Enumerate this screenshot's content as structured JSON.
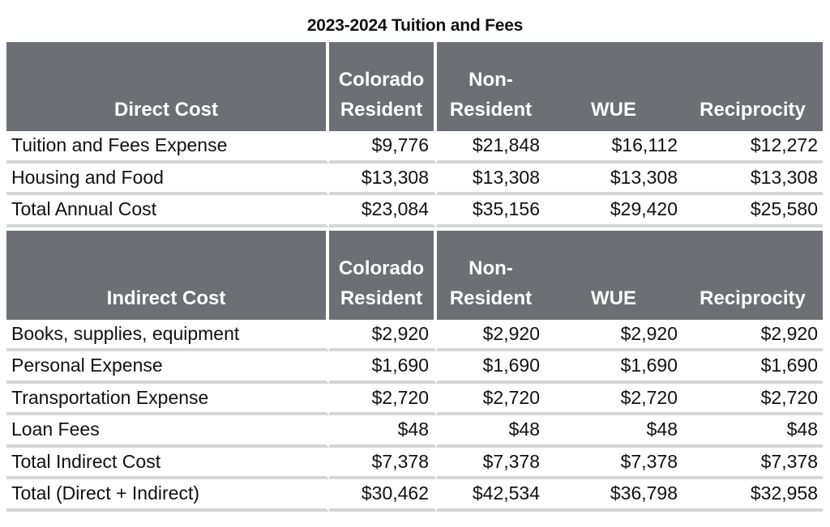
{
  "title": "2023-2024 Tuition and Fees",
  "columns": {
    "colorado_line1": "Colorado",
    "colorado_line2": "Resident",
    "nonres_line1": "Non-",
    "nonres_line2": "Resident",
    "wue": "WUE",
    "reciprocity": "Reciprocity"
  },
  "direct": {
    "header": "Direct Cost",
    "rows": [
      {
        "label": "Tuition and Fees Expense",
        "colorado": "$9,776",
        "nonresident": "$21,848",
        "wue": "$16,112",
        "reciprocity": "$12,272"
      },
      {
        "label": "Housing and Food",
        "colorado": "$13,308",
        "nonresident": "$13,308",
        "wue": "$13,308",
        "reciprocity": "$13,308"
      },
      {
        "label": "Total Annual Cost",
        "colorado": "$23,084",
        "nonresident": "$35,156",
        "wue": "$29,420",
        "reciprocity": "$25,580"
      }
    ]
  },
  "indirect": {
    "header": "Indirect Cost",
    "rows": [
      {
        "label": "Books, supplies, equipment",
        "colorado": "$2,920",
        "nonresident": "$2,920",
        "wue": "$2,920",
        "reciprocity": "$2,920"
      },
      {
        "label": "Personal Expense",
        "colorado": "$1,690",
        "nonresident": "$1,690",
        "wue": "$1,690",
        "reciprocity": "$1,690"
      },
      {
        "label": "Transportation Expense",
        "colorado": "$2,720",
        "nonresident": "$2,720",
        "wue": "$2,720",
        "reciprocity": "$2,720"
      },
      {
        "label": "Loan Fees",
        "colorado": "$48",
        "nonresident": "$48",
        "wue": "$48",
        "reciprocity": "$48"
      },
      {
        "label": "Total Indirect Cost",
        "colorado": "$7,378",
        "nonresident": "$7,378",
        "wue": "$7,378",
        "reciprocity": "$7,378"
      },
      {
        "label": "Total (Direct + Indirect)",
        "colorado": "$30,462",
        "nonresident": "$42,534",
        "wue": "$36,798",
        "reciprocity": "$32,958"
      }
    ]
  },
  "colors": {
    "header_bg": "#6d6f75",
    "header_text": "#ffffff",
    "row_divider": "#d6d6d6"
  }
}
